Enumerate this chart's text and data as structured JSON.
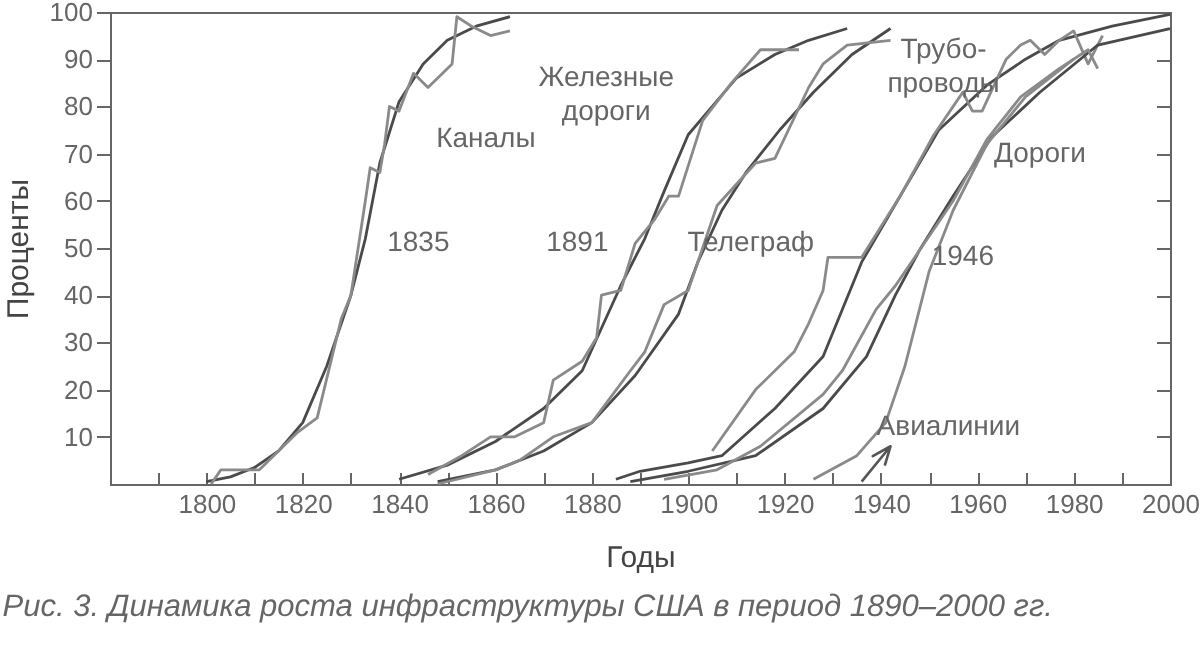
{
  "chart_data": {
    "type": "line",
    "title": "Рис. 3.  Динамика роста инфраструктуры США в период 1890–2000 гг.",
    "xlabel": "Годы",
    "ylabel": "Проценты",
    "xlim": [
      1780,
      2000
    ],
    "xticks": [
      {
        "value": 1790,
        "label": null
      },
      1800,
      {
        "value": 1810,
        "label": null
      },
      1820,
      {
        "value": 1830,
        "label": null
      },
      1840,
      {
        "value": 1850,
        "label": null
      },
      1860,
      {
        "value": 1870,
        "label": null
      },
      1880,
      {
        "value": 1890,
        "label": null
      },
      1900,
      {
        "value": 1910,
        "label": null
      },
      1920,
      {
        "value": 1930,
        "label": null
      },
      1940,
      {
        "value": 1950,
        "label": null
      },
      1960,
      {
        "value": 1970,
        "label": null
      },
      1980,
      {
        "value": 1990,
        "label": null
      },
      2000
    ],
    "ylim": [
      0,
      100
    ],
    "yticks": [
      10,
      20,
      30,
      40,
      50,
      60,
      70,
      80,
      90,
      100
    ],
    "grid": false,
    "legend": false,
    "marker": "none",
    "line_style": "solid",
    "series": [
      {
        "color": "#4a4a4a",
        "x": [
          1800,
          1805,
          1810,
          1815,
          1820,
          1825,
          1830,
          1833,
          1836,
          1840,
          1845,
          1850,
          1856,
          1863
        ],
        "values": [
          0.5,
          1.5,
          3.5,
          7,
          13,
          25,
          40,
          52,
          68,
          81,
          89,
          94,
          97,
          99
        ]
      },
      {
        "color": "#8a8a8a",
        "x": [
          1801,
          1803,
          1811,
          1819,
          1823,
          1828,
          1830,
          1833,
          1834,
          1836,
          1837,
          1838,
          1840,
          1843,
          1846,
          1851,
          1852,
          1855,
          1859,
          1863
        ],
        "values": [
          0,
          3,
          3,
          11,
          14,
          35,
          40,
          60,
          67,
          66,
          72,
          80,
          79,
          87,
          84,
          89,
          99,
          97,
          95,
          96
        ]
      },
      {
        "color": "#4a4a4a",
        "x": [
          1840,
          1850,
          1860,
          1870,
          1878,
          1886,
          1891,
          1895,
          1900,
          1905,
          1910,
          1918,
          1925,
          1933
        ],
        "values": [
          1,
          4,
          9,
          16,
          24,
          42,
          52,
          62,
          74,
          80,
          86,
          91,
          94,
          96.5
        ]
      },
      {
        "color": "#8a8a8a",
        "x": [
          1846,
          1853,
          1859,
          1864,
          1870,
          1872,
          1878,
          1881,
          1882,
          1886,
          1889,
          1893,
          1896,
          1898,
          1903,
          1909,
          1915,
          1923
        ],
        "values": [
          2,
          6,
          10,
          10,
          13,
          22,
          26,
          31,
          40,
          41,
          51,
          56,
          61,
          61,
          77,
          85,
          92,
          92
        ]
      },
      {
        "color": "#4a4a4a",
        "x": [
          1848,
          1860,
          1870,
          1880,
          1889,
          1898,
          1902,
          1907,
          1912,
          1919,
          1926,
          1934,
          1942
        ],
        "values": [
          0.5,
          3,
          7,
          13,
          23,
          36,
          47,
          58,
          66,
          75,
          83,
          91,
          96.5
        ]
      },
      {
        "color": "#8a8a8a",
        "x": [
          1848,
          1860,
          1865,
          1872,
          1880,
          1888,
          1891,
          1895,
          1900,
          1903,
          1906,
          1914,
          1918,
          1925,
          1928,
          1933,
          1942
        ],
        "values": [
          0,
          3,
          5,
          10,
          13,
          24,
          28,
          38,
          41,
          50,
          59,
          68,
          69,
          84,
          89,
          93,
          94
        ]
      },
      {
        "color": "#4a4a4a",
        "x": [
          1885,
          1890,
          1900,
          1907,
          1918,
          1928,
          1936,
          1944,
          1952,
          1962,
          1970,
          1977,
          1988,
          2000
        ],
        "values": [
          1,
          2.7,
          4.5,
          6,
          16,
          27,
          47,
          61,
          75,
          84.5,
          90,
          94,
          97,
          99.5
        ]
      },
      {
        "color": "#8a8a8a",
        "x": [
          1905,
          1914,
          1922,
          1925,
          1928,
          1929,
          1936,
          1944,
          1951,
          1955,
          1957,
          1959,
          1961,
          1966,
          1969,
          1971,
          1974,
          1977,
          1980,
          1983,
          1986
        ],
        "values": [
          7,
          20,
          28,
          34,
          41,
          48,
          48,
          61,
          74,
          80,
          83,
          79,
          79,
          90,
          93,
          94,
          91,
          94,
          96,
          89,
          95
        ]
      },
      {
        "color": "#4a4a4a",
        "x": [
          1888,
          1900,
          1914,
          1928,
          1937,
          1943,
          1948,
          1955,
          1963,
          1973,
          1985,
          2000
        ],
        "values": [
          0.5,
          2.7,
          6,
          16,
          27,
          40,
          49.5,
          61,
          73.5,
          83,
          93,
          96.5
        ]
      },
      {
        "color": "#8a8a8a",
        "x": [
          1895,
          1906,
          1915,
          1928,
          1932,
          1939,
          1943,
          1947,
          1955,
          1962,
          1969,
          1977,
          1983,
          1985
        ],
        "values": [
          1,
          3,
          8,
          19,
          24,
          37,
          42,
          48,
          60,
          73,
          82,
          88,
          92,
          88
        ]
      },
      {
        "color": "#8a8a8a",
        "x": [
          1926,
          1935,
          1941,
          1945,
          1950,
          1955,
          1962,
          1970,
          1980
        ],
        "values": [
          1,
          6,
          13,
          25,
          45,
          58,
          72,
          82,
          90
        ]
      }
    ],
    "annotations": [
      "Каналы",
      "1835",
      "Железные\nдороги",
      "1891",
      "Телеграф",
      "Трубо-\nпроводы",
      "Дороги",
      "1946",
      "Авиалинии"
    ]
  }
}
